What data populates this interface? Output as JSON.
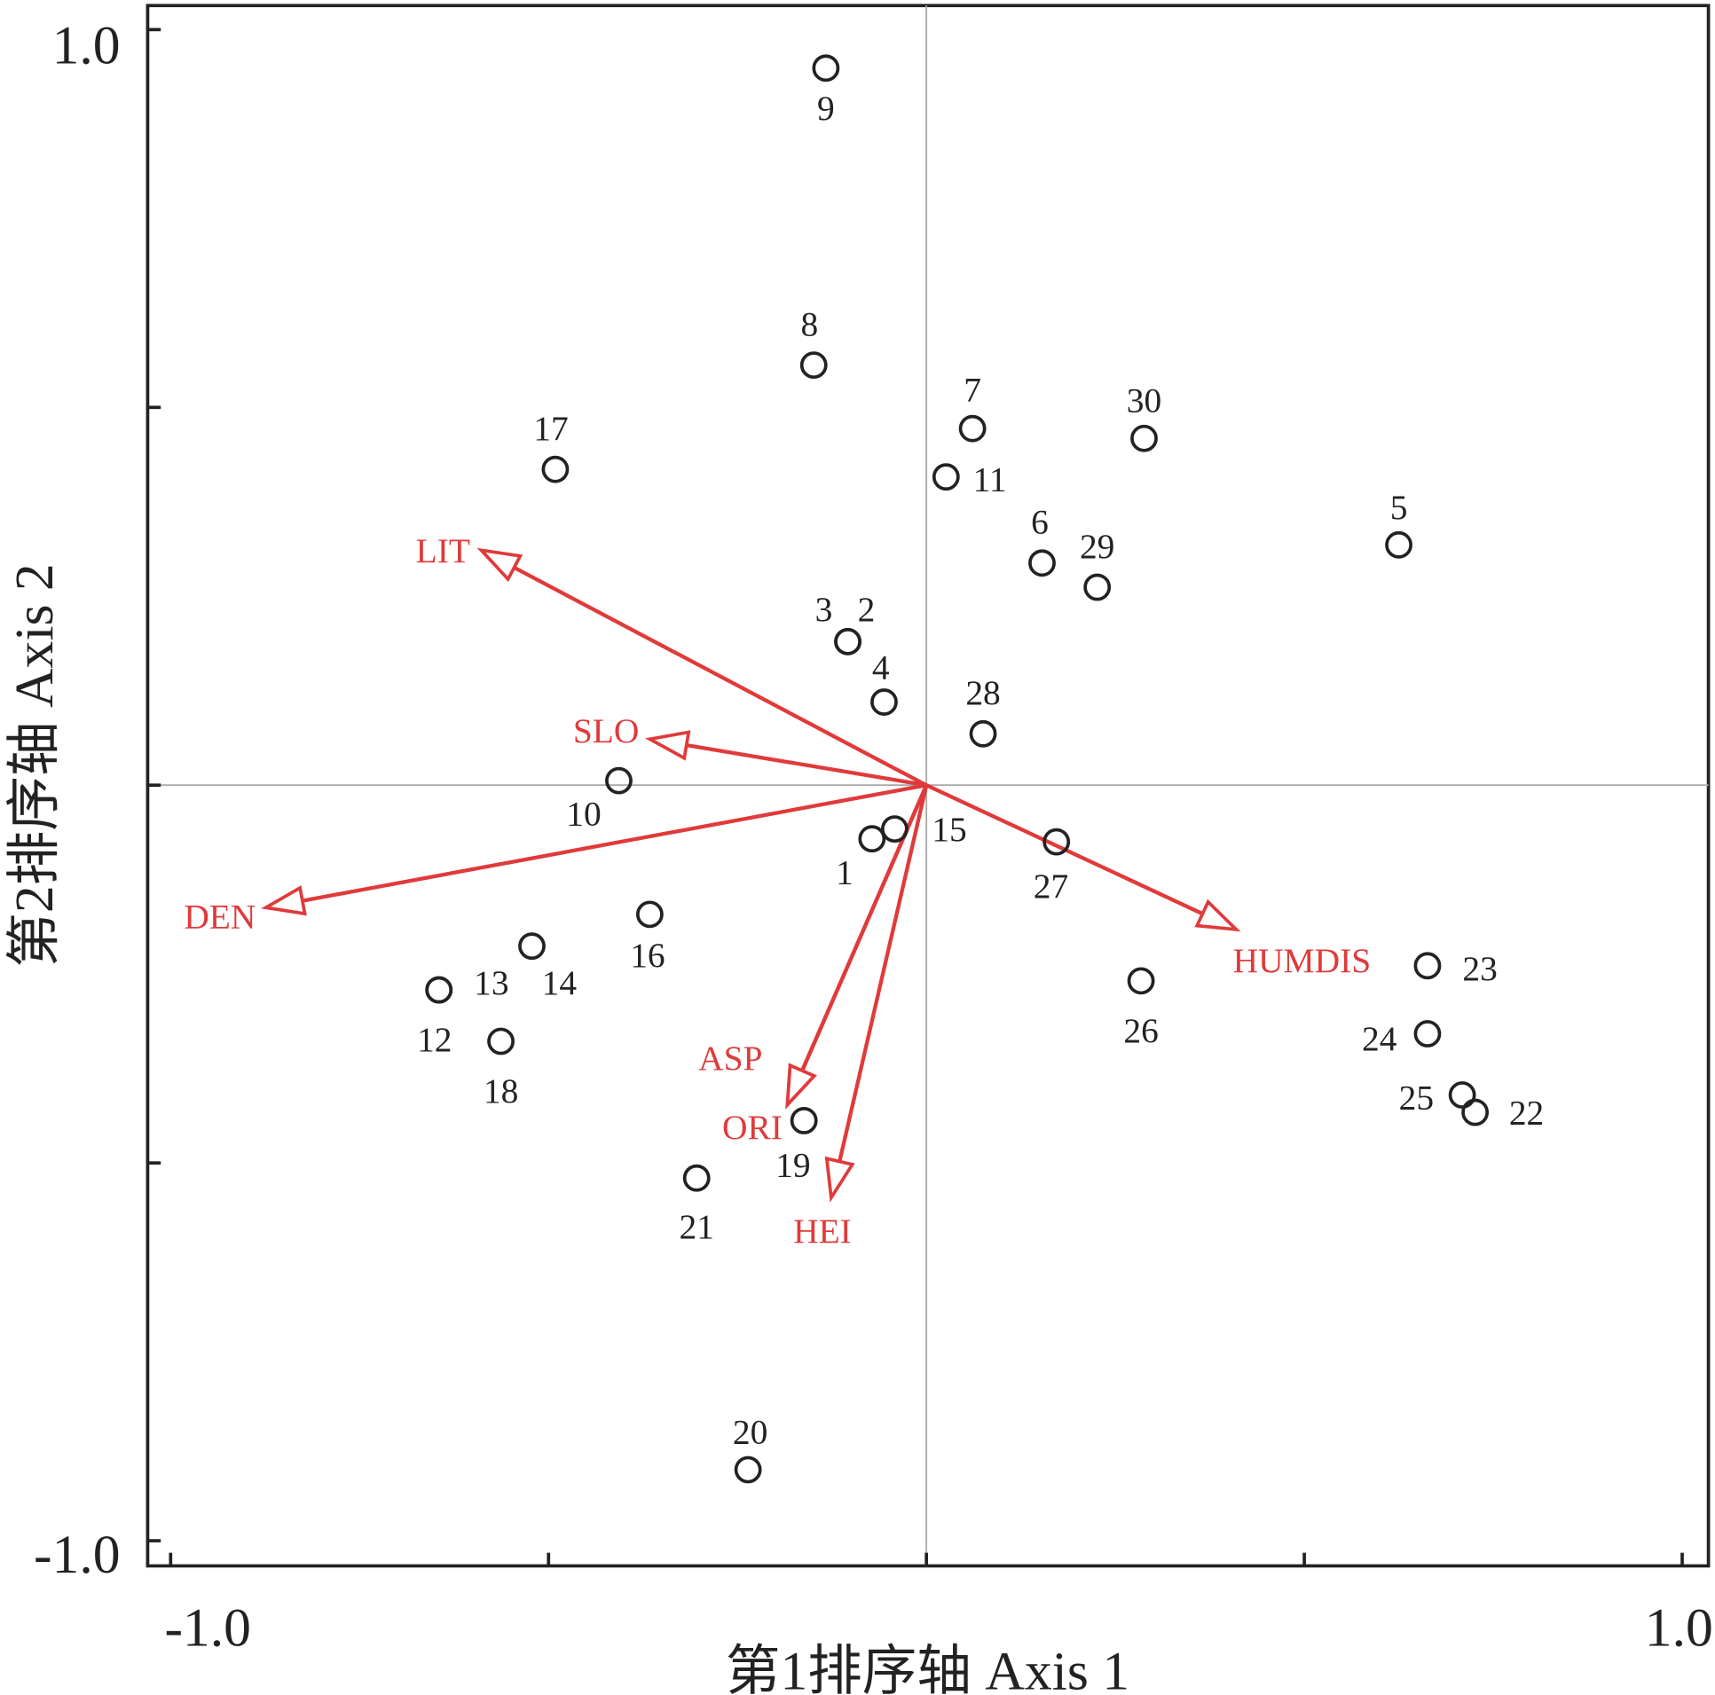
{
  "chart_data": {
    "type": "scatter",
    "subtype": "CCA ordination biplot",
    "xlabel": "第1排序轴 Axis 1",
    "ylabel": "第2排序轴 Axis 2",
    "xlim": [
      -1.0,
      1.0
    ],
    "ylim": [
      -1.0,
      1.0
    ],
    "x_tick_labels": [
      "-1.0",
      "1.0"
    ],
    "y_tick_labels": [
      "1.0",
      "-1.0"
    ],
    "colors": {
      "points": "#222222",
      "vectors": "#e03a3a",
      "reference_lines": "#aaaaaa"
    },
    "points": [
      {
        "label": "1",
        "x": -0.072,
        "y": -0.071
      },
      {
        "label": "2",
        "x": -0.104,
        "y": 0.19
      },
      {
        "label": "3",
        "x": -0.104,
        "y": 0.19
      },
      {
        "label": "4",
        "x": -0.056,
        "y": 0.11
      },
      {
        "label": "5",
        "x": 0.625,
        "y": 0.318
      },
      {
        "label": "6",
        "x": 0.153,
        "y": 0.294
      },
      {
        "label": "7",
        "x": 0.061,
        "y": 0.472
      },
      {
        "label": "8",
        "x": -0.149,
        "y": 0.556
      },
      {
        "label": "9",
        "x": -0.133,
        "y": 0.949
      },
      {
        "label": "10",
        "x": -0.407,
        "y": 0.006
      },
      {
        "label": "11",
        "x": 0.026,
        "y": 0.408
      },
      {
        "label": "12",
        "x": -0.645,
        "y": -0.271
      },
      {
        "label": "13",
        "x": -0.645,
        "y": -0.271
      },
      {
        "label": "14",
        "x": -0.522,
        "y": -0.213
      },
      {
        "label": "15",
        "x": -0.042,
        "y": -0.058
      },
      {
        "label": "16",
        "x": -0.366,
        "y": -0.171
      },
      {
        "label": "17",
        "x": -0.491,
        "y": 0.418
      },
      {
        "label": "18",
        "x": -0.563,
        "y": -0.339
      },
      {
        "label": "19",
        "x": -0.162,
        "y": -0.444
      },
      {
        "label": "20",
        "x": -0.236,
        "y": -0.906
      },
      {
        "label": "21",
        "x": -0.304,
        "y": -0.52
      },
      {
        "label": "22",
        "x": 0.726,
        "y": -0.433
      },
      {
        "label": "23",
        "x": 0.663,
        "y": -0.239
      },
      {
        "label": "24",
        "x": 0.663,
        "y": -0.329
      },
      {
        "label": "25",
        "x": 0.709,
        "y": -0.41
      },
      {
        "label": "26",
        "x": 0.284,
        "y": -0.259
      },
      {
        "label": "27",
        "x": 0.172,
        "y": -0.075
      },
      {
        "label": "28",
        "x": 0.075,
        "y": 0.068
      },
      {
        "label": "29",
        "x": 0.226,
        "y": 0.262
      },
      {
        "label": "30",
        "x": 0.288,
        "y": 0.459
      }
    ],
    "vectors": [
      {
        "label": "LIT",
        "x": -0.589,
        "y": 0.311
      },
      {
        "label": "SLO",
        "x": -0.366,
        "y": 0.061
      },
      {
        "label": "DEN",
        "x": -0.874,
        "y": -0.162
      },
      {
        "label": "ASP",
        "x": -0.184,
        "y": -0.423
      },
      {
        "label": "ORI",
        "x": -0.184,
        "y": -0.423
      },
      {
        "label": "HEI",
        "x": -0.126,
        "y": -0.546
      },
      {
        "label": "HUMDIS",
        "x": 0.41,
        "y": -0.191
      }
    ]
  }
}
